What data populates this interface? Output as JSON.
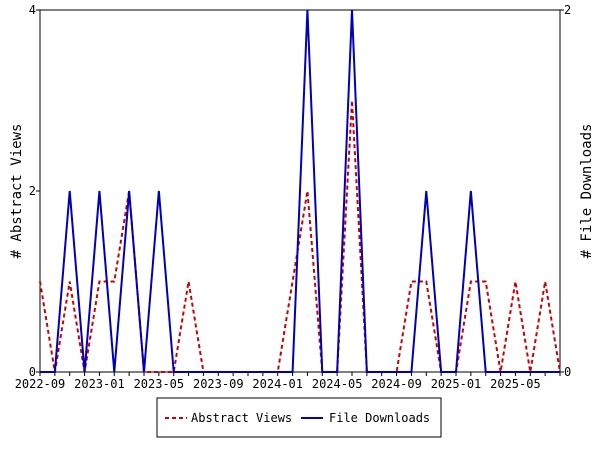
{
  "chart_data": {
    "type": "line",
    "x": [
      "2022-09",
      "2022-10",
      "2022-11",
      "2022-12",
      "2023-01",
      "2023-02",
      "2023-03",
      "2023-04",
      "2023-05",
      "2023-06",
      "2023-07",
      "2023-08",
      "2023-09",
      "2023-10",
      "2023-11",
      "2023-12",
      "2024-01",
      "2024-02",
      "2024-03",
      "2024-04",
      "2024-05",
      "2024-06",
      "2024-07",
      "2024-08",
      "2024-09",
      "2024-10",
      "2024-11",
      "2024-12",
      "2025-01",
      "2025-02",
      "2025-03",
      "2025-04",
      "2025-05",
      "2025-06",
      "2025-07",
      "2025-08"
    ],
    "xtick_labels": [
      "2022-09",
      "2023-01",
      "2023-05",
      "2023-09",
      "2024-01",
      "2024-05",
      "2024-09",
      "2025-01",
      "2025-05"
    ],
    "series": [
      {
        "name": "Abstract Views",
        "axis": "left",
        "color": "#cc0000",
        "style": "dashed",
        "values": [
          1,
          0,
          1,
          0,
          1,
          1,
          2,
          0,
          0,
          0,
          1,
          0,
          0,
          0,
          0,
          0,
          0,
          1,
          2,
          0,
          0,
          3,
          0,
          0,
          0,
          1,
          1,
          0,
          0,
          1,
          1,
          0,
          1,
          0,
          1,
          0
        ]
      },
      {
        "name": "File Downloads",
        "axis": "right",
        "color": "#0000bb",
        "style": "solid",
        "values": [
          0,
          0,
          1,
          0,
          1,
          0,
          1,
          0,
          1,
          0,
          0,
          0,
          0,
          0,
          0,
          0,
          0,
          0,
          2,
          0,
          0,
          2,
          0,
          0,
          0,
          0,
          1,
          0,
          0,
          1,
          0,
          0,
          0,
          0,
          0,
          0
        ]
      }
    ],
    "ylabel_left": "# Abstract Views",
    "ylabel_right": "# File Downloads",
    "ylim_left": [
      0,
      4
    ],
    "ylim_right": [
      0,
      2
    ],
    "yticks_left": [
      "0",
      "2",
      "4"
    ],
    "yticks_right": [
      "0",
      "2"
    ],
    "grid": false,
    "legend_placement": "bottom-center"
  }
}
